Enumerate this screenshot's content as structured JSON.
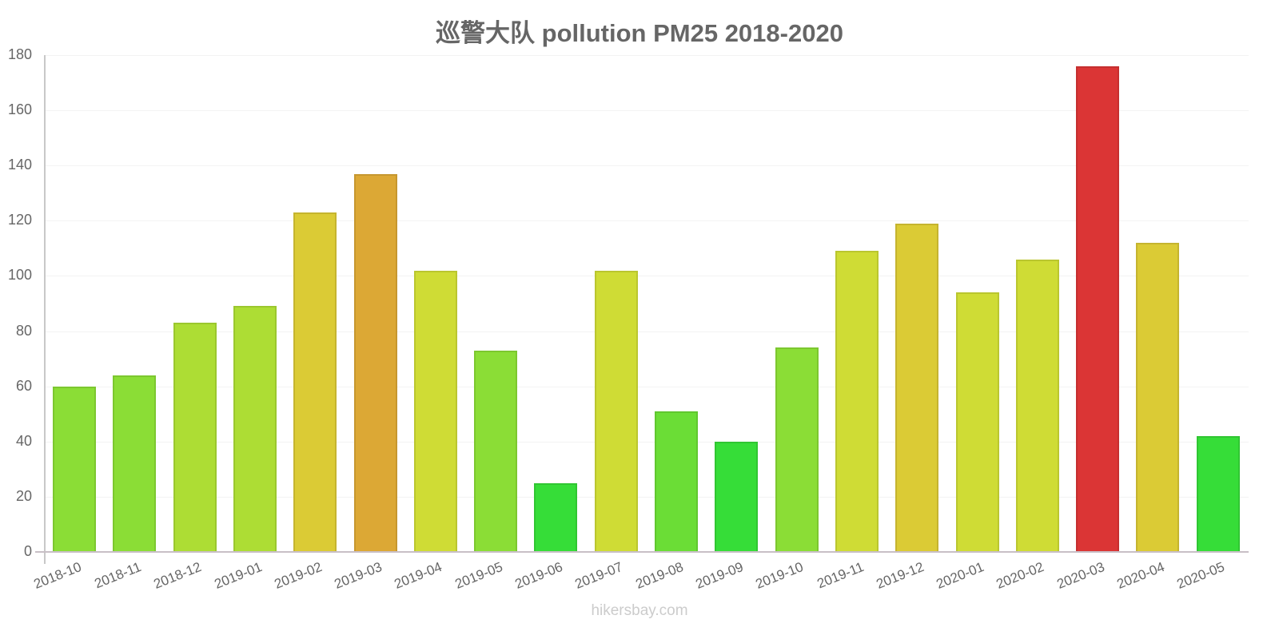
{
  "title": "巡警大队 pollution PM25 2018-2020",
  "footer": "hikersbay.com",
  "chart_data": {
    "type": "bar",
    "title": "巡警大队 pollution PM25 2018-2020",
    "xlabel": "",
    "ylabel": "",
    "ylim": [
      0,
      180
    ],
    "yticks": [
      0,
      20,
      40,
      60,
      80,
      100,
      120,
      140,
      160,
      180
    ],
    "grid": true,
    "legend": "none",
    "categories": [
      "2018-10",
      "2018-11",
      "2018-12",
      "2019-01",
      "2019-02",
      "2019-03",
      "2019-04",
      "2019-05",
      "2019-06",
      "2019-07",
      "2019-08",
      "2019-09",
      "2019-10",
      "2019-11",
      "2019-12",
      "2020-01",
      "2020-02",
      "2020-03",
      "2020-04",
      "2020-05"
    ],
    "values": [
      60,
      64,
      83,
      89,
      123,
      137,
      102,
      73,
      25,
      102,
      51,
      40,
      74,
      109,
      119,
      94,
      106,
      176,
      112,
      42
    ],
    "colors": [
      "#8bdd36",
      "#8bdd36",
      "#addd34",
      "#addd34",
      "#dbcb35",
      "#dca835",
      "#cfdc35",
      "#8bdd36",
      "#36dd38",
      "#cfdc35",
      "#6bdd36",
      "#36dd38",
      "#8bdd36",
      "#cfdc35",
      "#dbcb35",
      "#cfdc35",
      "#cfdc35",
      "#db3535",
      "#dbcb35",
      "#36dd38"
    ],
    "border_colors": [
      "#7cc72f",
      "#7cc72f",
      "#9bc72e",
      "#9bc72e",
      "#c5b42f",
      "#c6972f",
      "#bac62f",
      "#7cc72f",
      "#30c632",
      "#bac62f",
      "#60c72f",
      "#30c632",
      "#7cc72f",
      "#bac62f",
      "#c5b42f",
      "#bac62f",
      "#bac62f",
      "#c52f2f",
      "#c5b42f",
      "#30c632"
    ]
  }
}
